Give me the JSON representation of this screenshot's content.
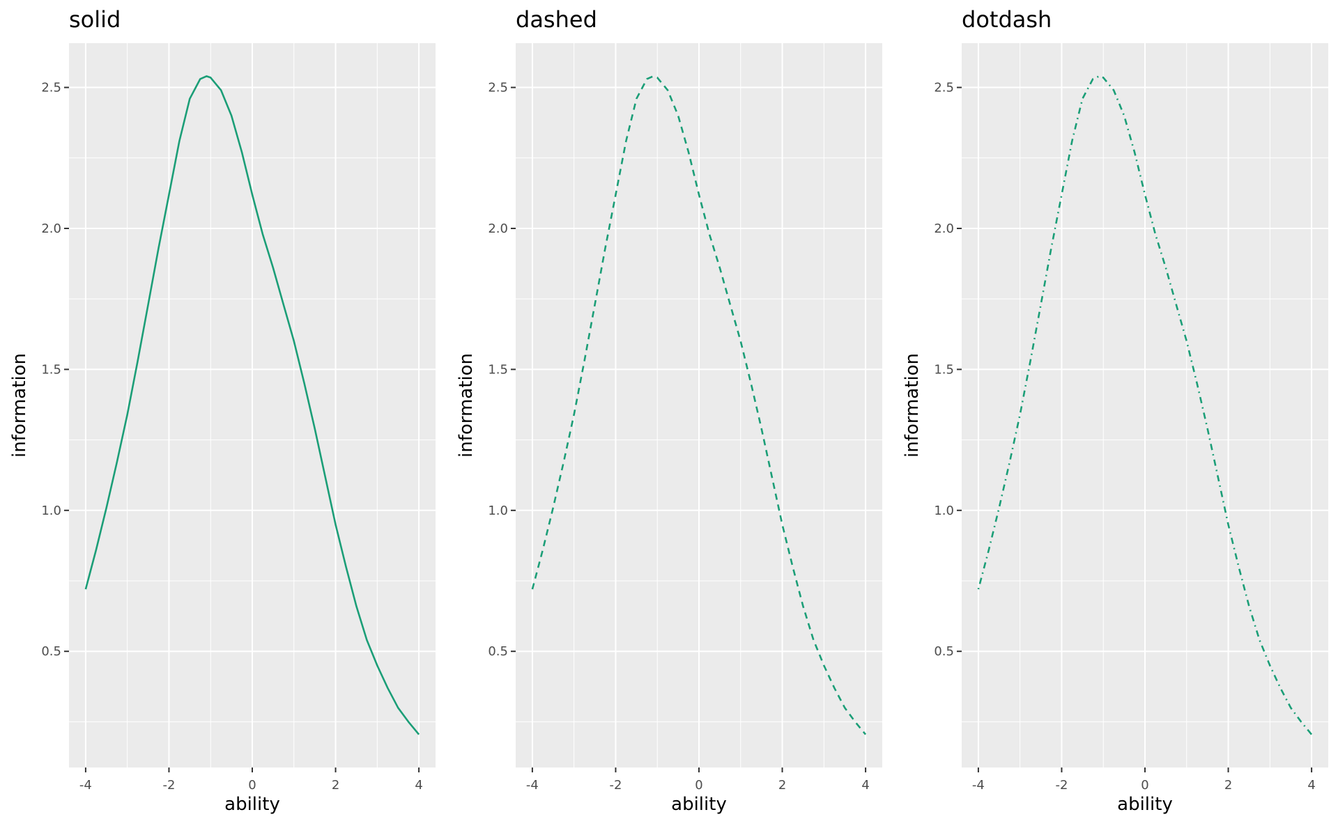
{
  "chart_data": [
    {
      "type": "line",
      "title": "solid",
      "linetype": "solid",
      "xlabel": "ability",
      "ylabel": "information",
      "xlim": [
        -4.4,
        4.4
      ],
      "ylim": [
        0.088,
        2.657
      ],
      "xticks": [
        -4,
        -2,
        0,
        2,
        4
      ],
      "xtick_labels": [
        "-4",
        "-2",
        "0",
        "2",
        "4"
      ],
      "yticks": [
        0.5,
        1.0,
        1.5,
        2.0,
        2.5
      ],
      "ytick_labels": [
        "0.5",
        "1.0",
        "1.5",
        "2.0",
        "2.5"
      ],
      "grid": true,
      "color": "#1b9e77"
    },
    {
      "type": "line",
      "title": "dashed",
      "linetype": "dashed",
      "xlabel": "ability",
      "ylabel": "information",
      "xlim": [
        -4.4,
        4.4
      ],
      "ylim": [
        0.088,
        2.657
      ],
      "xticks": [
        -4,
        -2,
        0,
        2,
        4
      ],
      "xtick_labels": [
        "-4",
        "-2",
        "0",
        "2",
        "4"
      ],
      "yticks": [
        0.5,
        1.0,
        1.5,
        2.0,
        2.5
      ],
      "ytick_labels": [
        "0.5",
        "1.0",
        "1.5",
        "2.0",
        "2.5"
      ],
      "grid": true,
      "color": "#1b9e77"
    },
    {
      "type": "line",
      "title": "dotdash",
      "linetype": "dotdash",
      "xlabel": "ability",
      "ylabel": "information",
      "xlim": [
        -4.4,
        4.4
      ],
      "ylim": [
        0.088,
        2.657
      ],
      "xticks": [
        -4,
        -2,
        0,
        2,
        4
      ],
      "xtick_labels": [
        "-4",
        "-2",
        "0",
        "2",
        "4"
      ],
      "yticks": [
        0.5,
        1.0,
        1.5,
        2.0,
        2.5
      ],
      "ytick_labels": [
        "0.5",
        "1.0",
        "1.5",
        "2.0",
        "2.5"
      ],
      "grid": true,
      "color": "#1b9e77"
    }
  ],
  "series": {
    "x": [
      -4,
      -3.75,
      -3.5,
      -3.25,
      -3,
      -2.75,
      -2.5,
      -2.25,
      -2,
      -1.75,
      -1.5,
      -1.25,
      -1.1,
      -1,
      -0.75,
      -0.5,
      -0.25,
      0,
      0.25,
      0.5,
      0.75,
      1,
      1.25,
      1.5,
      1.75,
      2,
      2.25,
      2.5,
      2.75,
      3,
      3.25,
      3.5,
      3.75,
      4
    ],
    "y": [
      0.72,
      0.86,
      1.01,
      1.17,
      1.34,
      1.53,
      1.73,
      1.93,
      2.12,
      2.31,
      2.46,
      2.53,
      2.54,
      2.535,
      2.49,
      2.4,
      2.27,
      2.12,
      1.98,
      1.86,
      1.73,
      1.6,
      1.45,
      1.29,
      1.12,
      0.95,
      0.8,
      0.66,
      0.54,
      0.45,
      0.37,
      0.3,
      0.25,
      0.205
    ]
  }
}
